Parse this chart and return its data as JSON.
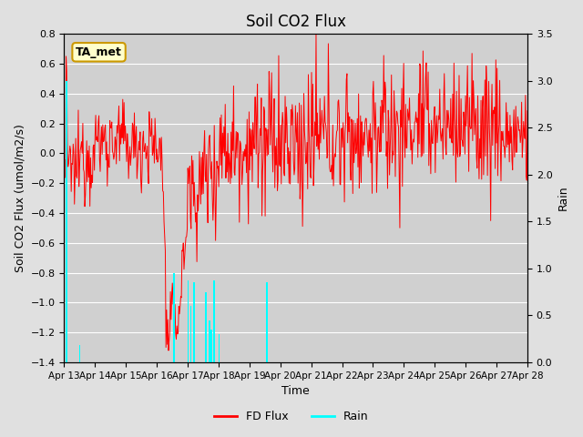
{
  "title": "Soil CO2 Flux",
  "xlabel": "Time",
  "ylabel_left": "Soil CO2 Flux (umol/m2/s)",
  "ylabel_right": "Rain",
  "ylim_left": [
    -1.4,
    0.8
  ],
  "ylim_right": [
    0.0,
    3.5
  ],
  "yticks_left": [
    -1.4,
    -1.2,
    -1.0,
    -0.8,
    -0.6,
    -0.4,
    -0.2,
    0.0,
    0.2,
    0.4,
    0.6,
    0.8
  ],
  "yticks_right": [
    0.0,
    0.5,
    1.0,
    1.5,
    2.0,
    2.5,
    3.0,
    3.5
  ],
  "flux_color": "red",
  "rain_color": "cyan",
  "bg_color": "#e0e0e0",
  "plot_bg": "#d0d0d0",
  "annotation_text": "TA_met",
  "annotation_bg": "#ffffcc",
  "annotation_border": "#cc9900",
  "legend_flux_label": "FD Flux",
  "legend_rain_label": "Rain",
  "title_fontsize": 12,
  "axis_fontsize": 9,
  "tick_fontsize": 8
}
